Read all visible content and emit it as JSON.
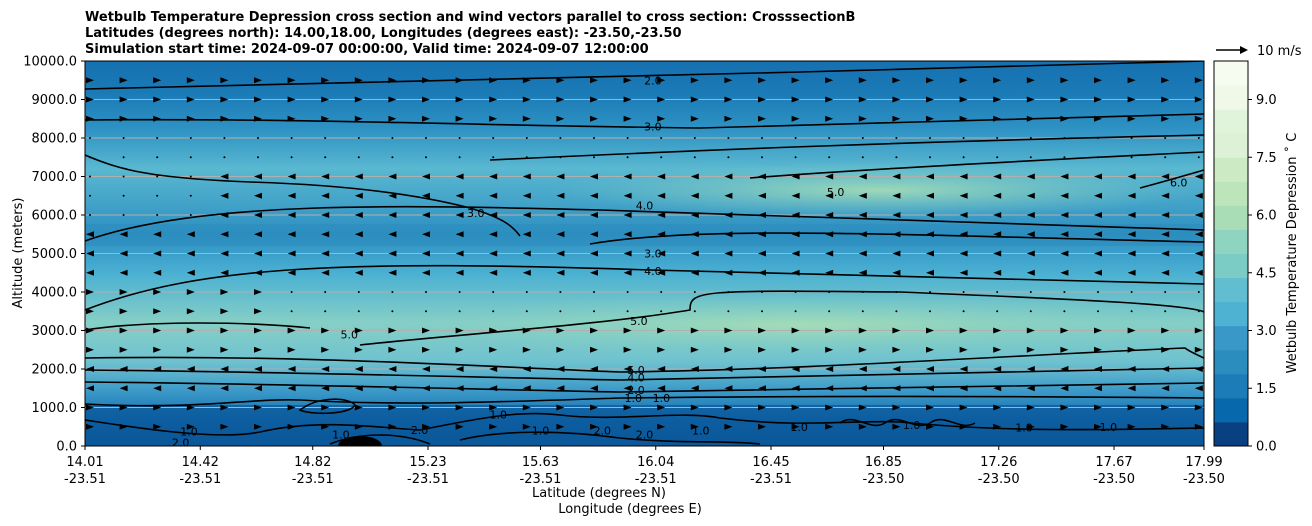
{
  "chart_data": {
    "type": "heatmap",
    "title_lines": [
      "Wetbulb Temperature Depression cross section and wind vectors parallel to cross section: CrosssectionB",
      "Latitudes (degrees north): 14.00,18.00, Longitudes (degrees east): -23.50,-23.50",
      "Simulation start time: 2024-09-07 00:00:00, Valid time: 2024-09-07 12:00:00"
    ],
    "ylabel": "Altitude (meters)",
    "xlabel_lines": [
      "Latitude (degrees N)",
      "Longitude (degrees E)"
    ],
    "ylim": [
      0,
      10000
    ],
    "xlim": [
      14.01,
      17.99
    ],
    "y_ticks": [
      {
        "value": 0,
        "label": "0.0"
      },
      {
        "value": 1000,
        "label": "1000.0"
      },
      {
        "value": 2000,
        "label": "2000.0"
      },
      {
        "value": 3000,
        "label": "3000.0"
      },
      {
        "value": 4000,
        "label": "4000.0"
      },
      {
        "value": 5000,
        "label": "5000.0"
      },
      {
        "value": 6000,
        "label": "6000.0"
      },
      {
        "value": 7000,
        "label": "7000.0"
      },
      {
        "value": 8000,
        "label": "8000.0"
      },
      {
        "value": 9000,
        "label": "9000.0"
      },
      {
        "value": 10000,
        "label": "10000.0"
      }
    ],
    "x_ticks": [
      {
        "value": 14.01,
        "lat": "14.01",
        "lon": "-23.51"
      },
      {
        "value": 14.42,
        "lat": "14.42",
        "lon": "-23.51"
      },
      {
        "value": 14.82,
        "lat": "14.82",
        "lon": "-23.51"
      },
      {
        "value": 15.23,
        "lat": "15.23",
        "lon": "-23.51"
      },
      {
        "value": 15.63,
        "lat": "15.63",
        "lon": "-23.51"
      },
      {
        "value": 16.04,
        "lat": "16.04",
        "lon": "-23.51"
      },
      {
        "value": 16.45,
        "lat": "16.45",
        "lon": "-23.51"
      },
      {
        "value": 16.85,
        "lat": "16.85",
        "lon": "-23.50"
      },
      {
        "value": 17.26,
        "lat": "17.26",
        "lon": "-23.50"
      },
      {
        "value": 17.67,
        "lat": "17.67",
        "lon": "-23.50"
      },
      {
        "value": 17.99,
        "lat": "17.99",
        "lon": "-23.50"
      }
    ],
    "grid": "horizontal",
    "colorbar": {
      "label": "Wetbulb Temperature Depression ˚ C",
      "range": [
        0,
        10
      ],
      "ticks": [
        "0.0",
        "1.5",
        "3.0",
        "4.5",
        "6.0",
        "7.5",
        "9.0"
      ],
      "tick_values": [
        0,
        1.5,
        3,
        4.5,
        6,
        7.5,
        9
      ],
      "colors": [
        "#084081",
        "#0868ac",
        "#1b7cb8",
        "#2b8cbe",
        "#3a98c8",
        "#4eb3d3",
        "#61bdd0",
        "#7bccc4",
        "#8fd3c1",
        "#a8ddb5",
        "#bde5bc",
        "#ccebc5",
        "#dcf1d6",
        "#e0f3db",
        "#f0f9e8",
        "#f7fcf0"
      ]
    },
    "quiver_key": {
      "label": "10 m/s"
    },
    "contour_labels": [
      {
        "text": "2.0",
        "x": 16.03,
        "y": 9500
      },
      {
        "text": "3.0",
        "x": 16.03,
        "y": 8300
      },
      {
        "text": "5.0",
        "x": 16.68,
        "y": 6600
      },
      {
        "text": "6.0",
        "x": 17.9,
        "y": 6850
      },
      {
        "text": "4.0",
        "x": 16.0,
        "y": 6250
      },
      {
        "text": "3.0",
        "x": 15.4,
        "y": 6050
      },
      {
        "text": "3.0",
        "x": 16.03,
        "y": 5000
      },
      {
        "text": "4.0",
        "x": 16.03,
        "y": 4550
      },
      {
        "text": "5.0",
        "x": 15.98,
        "y": 3250
      },
      {
        "text": "5.0",
        "x": 14.95,
        "y": 2900
      },
      {
        "text": "5.0",
        "x": 15.97,
        "y": 1970
      },
      {
        "text": "4.0",
        "x": 15.97,
        "y": 1780
      },
      {
        "text": "2.0",
        "x": 15.97,
        "y": 1450
      },
      {
        "text": "1.0",
        "x": 15.96,
        "y": 1250
      },
      {
        "text": "1.0",
        "x": 16.06,
        "y": 1250
      },
      {
        "text": "1.0",
        "x": 14.38,
        "y": 380
      },
      {
        "text": "2.0",
        "x": 14.35,
        "y": 90
      },
      {
        "text": "1.0",
        "x": 14.92,
        "y": 300
      },
      {
        "text": "2.0",
        "x": 15.2,
        "y": 420
      },
      {
        "text": "1.0",
        "x": 15.48,
        "y": 820
      },
      {
        "text": "1.0",
        "x": 15.63,
        "y": 400
      },
      {
        "text": "2.0",
        "x": 15.85,
        "y": 400
      },
      {
        "text": "2.0",
        "x": 16.0,
        "y": 300
      },
      {
        "text": "1.0",
        "x": 16.2,
        "y": 400
      },
      {
        "text": "1.0",
        "x": 16.55,
        "y": 500
      },
      {
        "text": "1.0",
        "x": 16.95,
        "y": 550
      },
      {
        "text": "1.0",
        "x": 17.35,
        "y": 480
      },
      {
        "text": "1.0",
        "x": 17.65,
        "y": 500
      }
    ]
  }
}
